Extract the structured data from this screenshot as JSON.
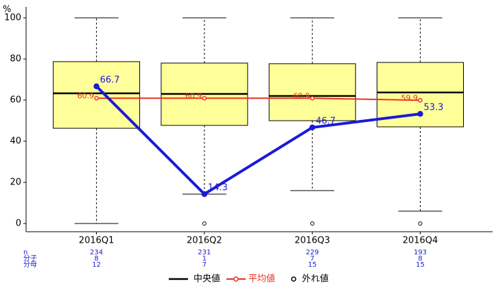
{
  "chart_data": {
    "type": "box",
    "ylabel": "%",
    "categories": [
      "2016Q1",
      "2016Q2",
      "2016Q3",
      "2016Q4"
    ],
    "ylim": [
      -4,
      104
    ],
    "yticks": [
      0,
      20,
      40,
      60,
      80,
      100
    ],
    "box_color": "#ffff99",
    "boxes": {
      "whisker_low": [
        0,
        14.3,
        16,
        6
      ],
      "q1": [
        46.3,
        47.7,
        50,
        47
      ],
      "median": [
        63.3,
        63,
        62,
        63.7
      ],
      "q3": [
        78.7,
        78,
        77.7,
        78.3
      ],
      "whisker_high": [
        100,
        100,
        100,
        100
      ],
      "outliers": [
        [],
        [
          0
        ],
        [
          0
        ],
        [
          0
        ]
      ]
    },
    "series": [
      {
        "name": "平均値",
        "color": "#e8321e",
        "values": [
          60.9,
          60.9,
          60.9,
          59.9
        ]
      },
      {
        "color": "#1a1ad8",
        "values": [
          66.7,
          14.3,
          46.7,
          53.3
        ]
      }
    ],
    "legend": {
      "median": "中央値",
      "outlier": "外れ値"
    },
    "table": {
      "row_labels": [
        "n",
        "分子",
        "分母"
      ],
      "rows": [
        [
          234,
          231,
          229,
          193
        ],
        [
          8,
          1,
          7,
          8
        ],
        [
          12,
          7,
          15,
          15
        ]
      ]
    }
  }
}
